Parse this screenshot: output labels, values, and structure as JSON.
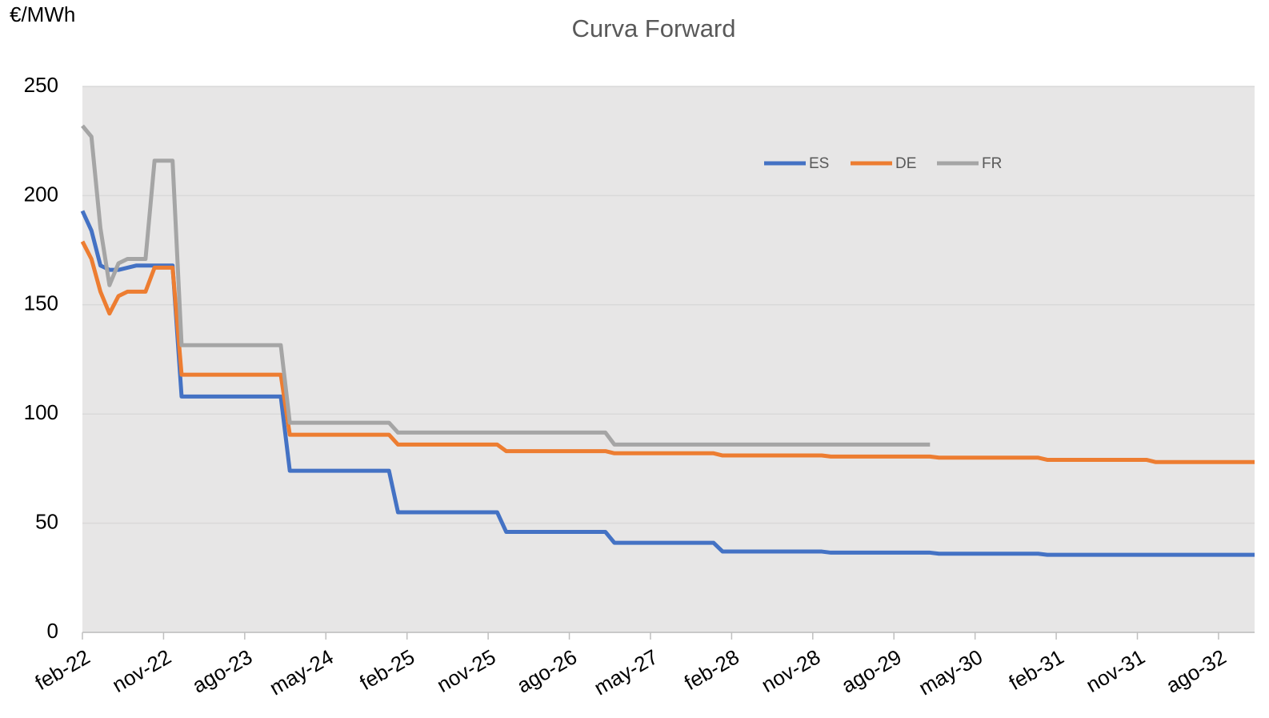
{
  "chart_data": {
    "type": "line",
    "title": "Curva Forward",
    "y_label": "€/MWh",
    "categories": [
      "feb-22",
      null,
      null,
      null,
      null,
      null,
      null,
      null,
      null,
      "nov-22",
      null,
      null,
      null,
      null,
      null,
      null,
      null,
      null,
      "ago-23",
      null,
      null,
      null,
      null,
      null,
      null,
      null,
      null,
      "may-24",
      null,
      null,
      null,
      null,
      null,
      null,
      null,
      null,
      "feb-25",
      null,
      null,
      null,
      null,
      null,
      null,
      null,
      null,
      "nov-25",
      null,
      null,
      null,
      null,
      null,
      null,
      null,
      null,
      "ago-26",
      null,
      null,
      null,
      null,
      null,
      null,
      null,
      null,
      "may-27",
      null,
      null,
      null,
      null,
      null,
      null,
      null,
      null,
      "feb-28",
      null,
      null,
      null,
      null,
      null,
      null,
      null,
      null,
      "nov-28",
      null,
      null,
      null,
      null,
      null,
      null,
      null,
      null,
      "ago-29",
      null,
      null,
      null,
      null,
      null,
      null,
      null,
      null,
      "may-30",
      null,
      null,
      null,
      null,
      null,
      null,
      null,
      null,
      "feb-31",
      null,
      null,
      null,
      null,
      null,
      null,
      null,
      null,
      "nov-31",
      null,
      null,
      null,
      null,
      null,
      null,
      null,
      null,
      "ago-32",
      null,
      null,
      null,
      null
    ],
    "series": [
      {
        "name": "ES",
        "color": "#4472c4",
        "values": [
          193,
          184,
          168,
          166,
          166,
          167,
          168,
          168,
          168,
          168,
          168,
          108,
          108,
          108,
          108,
          108,
          108,
          108,
          108,
          108,
          108,
          108,
          108,
          74,
          74,
          74,
          74,
          74,
          74,
          74,
          74,
          74,
          74,
          74,
          74,
          55,
          55,
          55,
          55,
          55,
          55,
          55,
          55,
          55,
          55,
          55,
          55,
          46,
          46,
          46,
          46,
          46,
          46,
          46,
          46,
          46,
          46,
          46,
          46,
          41,
          41,
          41,
          41,
          41,
          41,
          41,
          41,
          41,
          41,
          41,
          41,
          37,
          37,
          37,
          37,
          37,
          37,
          37,
          37,
          37,
          37,
          37,
          37,
          36.5,
          36.5,
          36.5,
          36.5,
          36.5,
          36.5,
          36.5,
          36.5,
          36.5,
          36.5,
          36.5,
          36.5,
          36,
          36,
          36,
          36,
          36,
          36,
          36,
          36,
          36,
          36,
          36,
          36,
          35.5,
          35.5,
          35.5,
          35.5,
          35.5,
          35.5,
          35.5,
          35.5,
          35.5,
          35.5,
          35.5,
          35.5,
          35.5,
          35.5,
          35.5,
          35.5,
          35.5,
          35.5,
          35.5,
          35.5,
          35.5,
          35.5,
          35.5,
          35.5
        ]
      },
      {
        "name": "DE",
        "color": "#ed7d31",
        "values": [
          179,
          171,
          156,
          146,
          154,
          156,
          156,
          156,
          167,
          167,
          167,
          118,
          118,
          118,
          118,
          118,
          118,
          118,
          118,
          118,
          118,
          118,
          118,
          90.5,
          90.5,
          90.5,
          90.5,
          90.5,
          90.5,
          90.5,
          90.5,
          90.5,
          90.5,
          90.5,
          90.5,
          86,
          86,
          86,
          86,
          86,
          86,
          86,
          86,
          86,
          86,
          86,
          86,
          83,
          83,
          83,
          83,
          83,
          83,
          83,
          83,
          83,
          83,
          83,
          83,
          82,
          82,
          82,
          82,
          82,
          82,
          82,
          82,
          82,
          82,
          82,
          82,
          81,
          81,
          81,
          81,
          81,
          81,
          81,
          81,
          81,
          81,
          81,
          81,
          80.5,
          80.5,
          80.5,
          80.5,
          80.5,
          80.5,
          80.5,
          80.5,
          80.5,
          80.5,
          80.5,
          80.5,
          80,
          80,
          80,
          80,
          80,
          80,
          80,
          80,
          80,
          80,
          80,
          80,
          79,
          79,
          79,
          79,
          79,
          79,
          79,
          79,
          79,
          79,
          79,
          79,
          78,
          78,
          78,
          78,
          78,
          78,
          78,
          78,
          78,
          78,
          78,
          78
        ]
      },
      {
        "name": "FR",
        "color": "#a5a5a5",
        "values": [
          232,
          227,
          185,
          159,
          169,
          171,
          171,
          171,
          216,
          216,
          216,
          131.5,
          131.5,
          131.5,
          131.5,
          131.5,
          131.5,
          131.5,
          131.5,
          131.5,
          131.5,
          131.5,
          131.5,
          96,
          96,
          96,
          96,
          96,
          96,
          96,
          96,
          96,
          96,
          96,
          96,
          91.5,
          91.5,
          91.5,
          91.5,
          91.5,
          91.5,
          91.5,
          91.5,
          91.5,
          91.5,
          91.5,
          91.5,
          91.5,
          91.5,
          91.5,
          91.5,
          91.5,
          91.5,
          91.5,
          91.5,
          91.5,
          91.5,
          91.5,
          91.5,
          86,
          86,
          86,
          86,
          86,
          86,
          86,
          86,
          86,
          86,
          86,
          86,
          86,
          86,
          86,
          86,
          86,
          86,
          86,
          86,
          86,
          86,
          86,
          86,
          86,
          86,
          86,
          86,
          86,
          86,
          86,
          86,
          86,
          86,
          86,
          86,
          null,
          null,
          null,
          null,
          null,
          null,
          null,
          null,
          null,
          null,
          null,
          null,
          null,
          null,
          null,
          null,
          null,
          null,
          null,
          null,
          null,
          null,
          null,
          null,
          null,
          null,
          null,
          null,
          null,
          null,
          null,
          null,
          null,
          null,
          null,
          null
        ]
      }
    ],
    "ylim": [
      0,
      250
    ],
    "yticks": [
      0,
      50,
      100,
      150,
      200,
      250
    ],
    "grid": true
  }
}
